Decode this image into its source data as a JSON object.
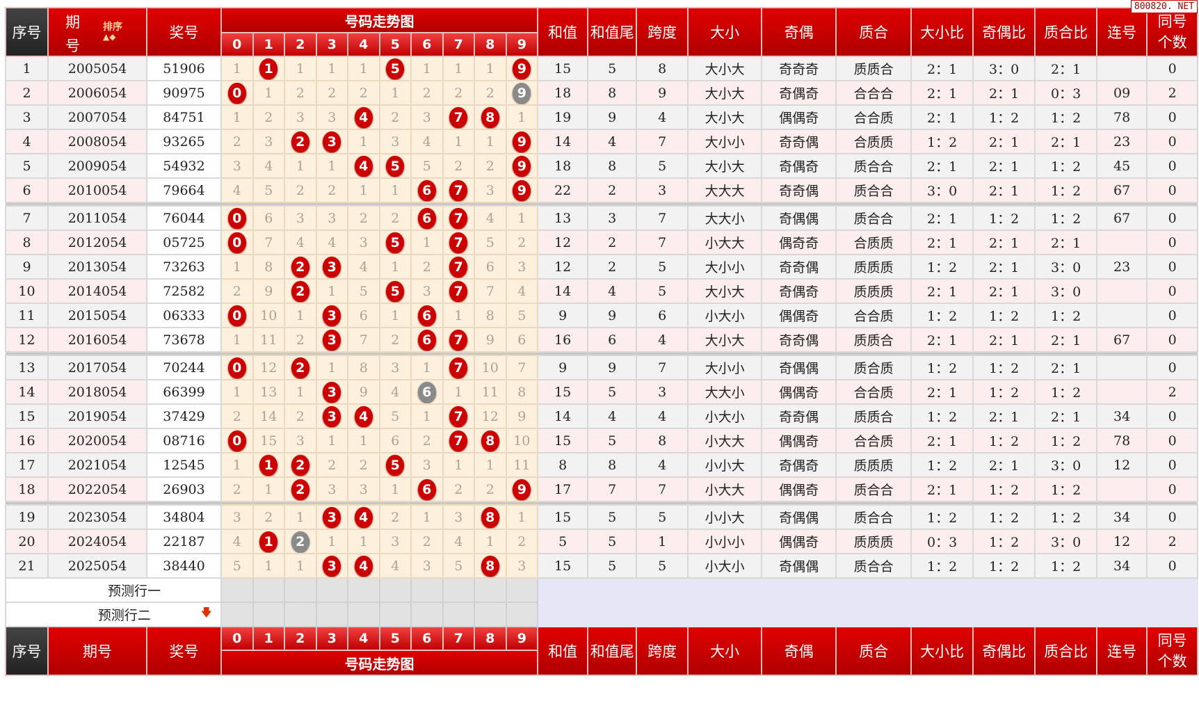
{
  "watermark": "800820. NET",
  "header": {
    "seq": "序号",
    "issue_top": "期",
    "issue_bottom": "号",
    "sort_label": "排序",
    "issue": "期号",
    "award": "奖号",
    "trend_title": "号码走势图",
    "digits": [
      "0",
      "1",
      "2",
      "3",
      "4",
      "5",
      "6",
      "7",
      "8",
      "9"
    ],
    "cols": [
      "和值",
      "和值尾",
      "跨度",
      "大小",
      "奇偶",
      "质合",
      "大小比",
      "奇偶比",
      "质合比",
      "连号"
    ],
    "same_top": "同号",
    "same_bottom": "个数"
  },
  "colors": {
    "ball_hit": "#cc0000",
    "ball_repeat": "#8a8a8a",
    "header": "#cc0000"
  },
  "rows": [
    {
      "seq": "1",
      "issue": "2005054",
      "award": "51906",
      "miss": [
        1,
        1,
        1,
        1,
        1,
        5,
        1,
        1,
        1,
        9
      ],
      "hit": [
        1,
        5,
        9
      ],
      "repeat": [],
      "sum": "15",
      "tail": "5",
      "span": "8",
      "bs": "大小大",
      "oe": "奇奇奇",
      "pc": "质质合",
      "bsr": "2：1",
      "oer": "3：0",
      "pcr": "2：1",
      "consec": "",
      "same": "0"
    },
    {
      "seq": "2",
      "issue": "2006054",
      "award": "90975",
      "miss": [
        0,
        1,
        2,
        2,
        2,
        1,
        2,
        2,
        2,
        9
      ],
      "hit": [
        0
      ],
      "repeat": [
        9
      ],
      "sum": "18",
      "tail": "8",
      "span": "9",
      "bs": "大小大",
      "oe": "奇偶奇",
      "pc": "合合合",
      "bsr": "2：1",
      "oer": "2：1",
      "pcr": "0：3",
      "consec": "09",
      "same": "2"
    },
    {
      "seq": "3",
      "issue": "2007054",
      "award": "84751",
      "miss": [
        1,
        2,
        3,
        3,
        4,
        2,
        3,
        7,
        8,
        1
      ],
      "hit": [
        4,
        7,
        8
      ],
      "repeat": [],
      "sum": "19",
      "tail": "9",
      "span": "4",
      "bs": "大小大",
      "oe": "偶偶奇",
      "pc": "合合质",
      "bsr": "2：1",
      "oer": "1：2",
      "pcr": "1：2",
      "consec": "78",
      "same": "0"
    },
    {
      "seq": "4",
      "issue": "2008054",
      "award": "93265",
      "miss": [
        2,
        3,
        2,
        3,
        1,
        3,
        4,
        1,
        1,
        9
      ],
      "hit": [
        2,
        3,
        9
      ],
      "repeat": [],
      "sum": "14",
      "tail": "4",
      "span": "7",
      "bs": "大小小",
      "oe": "奇奇偶",
      "pc": "合质质",
      "bsr": "1：2",
      "oer": "2：1",
      "pcr": "2：1",
      "consec": "23",
      "same": "0"
    },
    {
      "seq": "5",
      "issue": "2009054",
      "award": "54932",
      "miss": [
        3,
        4,
        1,
        1,
        4,
        5,
        5,
        2,
        2,
        9
      ],
      "hit": [
        4,
        5,
        9
      ],
      "repeat": [],
      "sum": "18",
      "tail": "8",
      "span": "5",
      "bs": "大小大",
      "oe": "奇偶奇",
      "pc": "质合合",
      "bsr": "2：1",
      "oer": "2：1",
      "pcr": "1：2",
      "consec": "45",
      "same": "0"
    },
    {
      "seq": "6",
      "issue": "2010054",
      "award": "79664",
      "miss": [
        4,
        5,
        2,
        2,
        1,
        1,
        6,
        7,
        3,
        9
      ],
      "hit": [
        6,
        7,
        9
      ],
      "repeat": [],
      "sum": "22",
      "tail": "2",
      "span": "3",
      "bs": "大大大",
      "oe": "奇奇偶",
      "pc": "质合合",
      "bsr": "3：0",
      "oer": "2：1",
      "pcr": "1：2",
      "consec": "67",
      "same": "0"
    },
    {
      "seq": "7",
      "issue": "2011054",
      "award": "76044",
      "miss": [
        0,
        6,
        3,
        3,
        2,
        2,
        6,
        7,
        4,
        1
      ],
      "hit": [
        0,
        6,
        7
      ],
      "repeat": [],
      "sum": "13",
      "tail": "3",
      "span": "7",
      "bs": "大大小",
      "oe": "奇偶偶",
      "pc": "质合合",
      "bsr": "2：1",
      "oer": "1：2",
      "pcr": "1：2",
      "consec": "67",
      "same": "0"
    },
    {
      "seq": "8",
      "issue": "2012054",
      "award": "05725",
      "miss": [
        0,
        7,
        4,
        4,
        3,
        5,
        1,
        7,
        5,
        2
      ],
      "hit": [
        0,
        5,
        7
      ],
      "repeat": [],
      "sum": "12",
      "tail": "2",
      "span": "7",
      "bs": "小大大",
      "oe": "偶奇奇",
      "pc": "合质质",
      "bsr": "2：1",
      "oer": "2：1",
      "pcr": "2：1",
      "consec": "",
      "same": "0"
    },
    {
      "seq": "9",
      "issue": "2013054",
      "award": "73263",
      "miss": [
        1,
        8,
        2,
        3,
        4,
        1,
        2,
        7,
        6,
        3
      ],
      "hit": [
        2,
        3,
        7
      ],
      "repeat": [],
      "sum": "12",
      "tail": "2",
      "span": "5",
      "bs": "大小小",
      "oe": "奇奇偶",
      "pc": "质质质",
      "bsr": "1：2",
      "oer": "2：1",
      "pcr": "3：0",
      "consec": "23",
      "same": "0"
    },
    {
      "seq": "10",
      "issue": "2014054",
      "award": "72582",
      "miss": [
        2,
        9,
        2,
        1,
        5,
        5,
        3,
        7,
        7,
        4
      ],
      "hit": [
        2,
        5,
        7
      ],
      "repeat": [],
      "sum": "14",
      "tail": "4",
      "span": "5",
      "bs": "大小大",
      "oe": "奇偶奇",
      "pc": "质质质",
      "bsr": "2：1",
      "oer": "2：1",
      "pcr": "3：0",
      "consec": "",
      "same": "0"
    },
    {
      "seq": "11",
      "issue": "2015054",
      "award": "06333",
      "miss": [
        0,
        10,
        1,
        3,
        6,
        1,
        6,
        1,
        8,
        5
      ],
      "hit": [
        0,
        3,
        6
      ],
      "repeat": [],
      "sum": "9",
      "tail": "9",
      "span": "6",
      "bs": "小大小",
      "oe": "偶偶奇",
      "pc": "合合质",
      "bsr": "1：2",
      "oer": "1：2",
      "pcr": "1：2",
      "consec": "",
      "same": "0"
    },
    {
      "seq": "12",
      "issue": "2016054",
      "award": "73678",
      "miss": [
        1,
        11,
        2,
        3,
        7,
        2,
        6,
        7,
        9,
        6
      ],
      "hit": [
        3,
        6,
        7
      ],
      "repeat": [],
      "sum": "16",
      "tail": "6",
      "span": "4",
      "bs": "大小大",
      "oe": "奇奇偶",
      "pc": "质质合",
      "bsr": "2：1",
      "oer": "2：1",
      "pcr": "2：1",
      "consec": "67",
      "same": "0"
    },
    {
      "seq": "13",
      "issue": "2017054",
      "award": "70244",
      "miss": [
        0,
        12,
        2,
        1,
        8,
        3,
        1,
        7,
        10,
        7
      ],
      "hit": [
        0,
        2,
        7
      ],
      "repeat": [],
      "sum": "9",
      "tail": "9",
      "span": "7",
      "bs": "大小小",
      "oe": "奇偶偶",
      "pc": "质合质",
      "bsr": "1：2",
      "oer": "1：2",
      "pcr": "2：1",
      "consec": "",
      "same": "0"
    },
    {
      "seq": "14",
      "issue": "2018054",
      "award": "66399",
      "miss": [
        1,
        13,
        1,
        3,
        9,
        4,
        6,
        1,
        11,
        8
      ],
      "hit": [
        3
      ],
      "repeat": [
        6
      ],
      "sum": "15",
      "tail": "5",
      "span": "3",
      "bs": "大大小",
      "oe": "偶偶奇",
      "pc": "合合质",
      "bsr": "2：1",
      "oer": "1：2",
      "pcr": "1：2",
      "consec": "",
      "same": "2"
    },
    {
      "seq": "15",
      "issue": "2019054",
      "award": "37429",
      "miss": [
        2,
        14,
        2,
        3,
        4,
        5,
        1,
        7,
        12,
        9
      ],
      "hit": [
        3,
        4,
        7
      ],
      "repeat": [],
      "sum": "14",
      "tail": "4",
      "span": "4",
      "bs": "小大小",
      "oe": "奇奇偶",
      "pc": "质质合",
      "bsr": "1：2",
      "oer": "2：1",
      "pcr": "2：1",
      "consec": "34",
      "same": "0"
    },
    {
      "seq": "16",
      "issue": "2020054",
      "award": "08716",
      "miss": [
        0,
        15,
        3,
        1,
        1,
        6,
        2,
        7,
        8,
        10
      ],
      "hit": [
        0,
        7,
        8
      ],
      "repeat": [],
      "sum": "15",
      "tail": "5",
      "span": "8",
      "bs": "小大大",
      "oe": "偶偶奇",
      "pc": "合合质",
      "bsr": "2：1",
      "oer": "1：2",
      "pcr": "1：2",
      "consec": "78",
      "same": "0"
    },
    {
      "seq": "17",
      "issue": "2021054",
      "award": "12545",
      "miss": [
        1,
        1,
        2,
        2,
        2,
        5,
        3,
        1,
        1,
        11
      ],
      "hit": [
        1,
        2,
        5
      ],
      "repeat": [],
      "sum": "8",
      "tail": "8",
      "span": "4",
      "bs": "小小大",
      "oe": "奇偶奇",
      "pc": "质质质",
      "bsr": "1：2",
      "oer": "2：1",
      "pcr": "3：0",
      "consec": "12",
      "same": "0"
    },
    {
      "seq": "18",
      "issue": "2022054",
      "award": "26903",
      "miss": [
        2,
        1,
        2,
        3,
        3,
        1,
        6,
        2,
        2,
        9
      ],
      "hit": [
        2,
        6,
        9
      ],
      "repeat": [],
      "sum": "17",
      "tail": "7",
      "span": "7",
      "bs": "小大大",
      "oe": "偶偶奇",
      "pc": "质合合",
      "bsr": "2：1",
      "oer": "1：2",
      "pcr": "1：2",
      "consec": "",
      "same": "0"
    },
    {
      "seq": "19",
      "issue": "2023054",
      "award": "34804",
      "miss": [
        3,
        2,
        1,
        3,
        4,
        2,
        1,
        3,
        8,
        1
      ],
      "hit": [
        3,
        4,
        8
      ],
      "repeat": [],
      "sum": "15",
      "tail": "5",
      "span": "5",
      "bs": "小小大",
      "oe": "奇偶偶",
      "pc": "质合合",
      "bsr": "1：2",
      "oer": "1：2",
      "pcr": "1：2",
      "consec": "34",
      "same": "0"
    },
    {
      "seq": "20",
      "issue": "2024054",
      "award": "22187",
      "miss": [
        4,
        1,
        2,
        1,
        1,
        3,
        2,
        4,
        1,
        2
      ],
      "hit": [
        1
      ],
      "repeat": [
        2
      ],
      "sum": "5",
      "tail": "5",
      "span": "1",
      "bs": "小小小",
      "oe": "偶偶奇",
      "pc": "质质质",
      "bsr": "0：3",
      "oer": "1：2",
      "pcr": "3：0",
      "consec": "12",
      "same": "2"
    },
    {
      "seq": "21",
      "issue": "2025054",
      "award": "38440",
      "miss": [
        5,
        1,
        1,
        3,
        4,
        4,
        3,
        5,
        8,
        3
      ],
      "hit": [
        3,
        4,
        8
      ],
      "repeat": [],
      "sum": "15",
      "tail": "5",
      "span": "5",
      "bs": "小大小",
      "oe": "奇偶偶",
      "pc": "质合合",
      "bsr": "1：2",
      "oer": "1：2",
      "pcr": "1：2",
      "consec": "34",
      "same": "0"
    }
  ],
  "predict": [
    "预测行一",
    "预测行二"
  ]
}
